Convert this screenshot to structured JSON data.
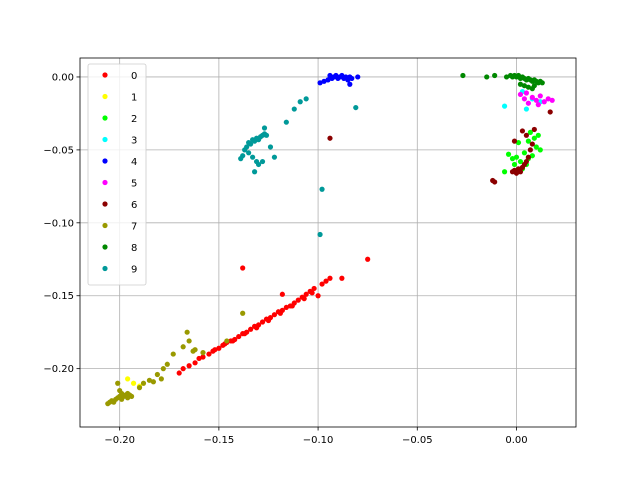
{
  "chart_data": {
    "type": "scatter",
    "title": "",
    "xlabel": "",
    "ylabel": "",
    "xlim": [
      -0.22,
      0.03
    ],
    "ylim": [
      -0.24,
      0.013
    ],
    "grid": true,
    "legend_placement": "upper-left",
    "x_ticks": [
      -0.2,
      -0.15,
      -0.1,
      -0.05,
      0.0
    ],
    "x_tick_labels": [
      "−0.20",
      "−0.15",
      "−0.10",
      "−0.05",
      "0.00"
    ],
    "y_ticks": [
      0.0,
      -0.05,
      -0.1,
      -0.15,
      -0.2
    ],
    "y_tick_labels": [
      "0.00",
      "−0.05",
      "−0.10",
      "−0.15",
      "−0.20"
    ],
    "series": [
      {
        "name": "0",
        "color": "#ff0000",
        "points": [
          [
            -0.17,
            -0.203
          ],
          [
            -0.168,
            -0.2
          ],
          [
            -0.165,
            -0.198
          ],
          [
            -0.162,
            -0.196
          ],
          [
            -0.16,
            -0.193
          ],
          [
            -0.158,
            -0.192
          ],
          [
            -0.155,
            -0.19
          ],
          [
            -0.153,
            -0.188
          ],
          [
            -0.15,
            -0.186
          ],
          [
            -0.148,
            -0.184
          ],
          [
            -0.146,
            -0.182
          ],
          [
            -0.144,
            -0.181
          ],
          [
            -0.142,
            -0.18
          ],
          [
            -0.14,
            -0.178
          ],
          [
            -0.138,
            -0.176
          ],
          [
            -0.136,
            -0.175
          ],
          [
            -0.134,
            -0.173
          ],
          [
            -0.132,
            -0.171
          ],
          [
            -0.13,
            -0.17
          ],
          [
            -0.128,
            -0.168
          ],
          [
            -0.126,
            -0.166
          ],
          [
            -0.124,
            -0.165
          ],
          [
            -0.122,
            -0.163
          ],
          [
            -0.12,
            -0.161
          ],
          [
            -0.118,
            -0.16
          ],
          [
            -0.116,
            -0.158
          ],
          [
            -0.114,
            -0.157
          ],
          [
            -0.112,
            -0.155
          ],
          [
            -0.11,
            -0.153
          ],
          [
            -0.108,
            -0.151
          ],
          [
            -0.106,
            -0.149
          ],
          [
            -0.104,
            -0.147
          ],
          [
            -0.102,
            -0.145
          ],
          [
            -0.1,
            -0.15
          ],
          [
            -0.098,
            -0.142
          ],
          [
            -0.096,
            -0.14
          ],
          [
            -0.094,
            -0.138
          ],
          [
            -0.118,
            -0.149
          ],
          [
            -0.152,
            -0.187
          ],
          [
            -0.147,
            -0.183
          ],
          [
            -0.143,
            -0.181
          ],
          [
            -0.137,
            -0.176
          ],
          [
            -0.131,
            -0.172
          ],
          [
            -0.125,
            -0.167
          ],
          [
            -0.119,
            -0.162
          ],
          [
            -0.113,
            -0.157
          ],
          [
            -0.107,
            -0.152
          ],
          [
            -0.103,
            -0.148
          ],
          [
            -0.088,
            -0.138
          ],
          [
            -0.075,
            -0.125
          ],
          [
            -0.138,
            -0.131
          ]
        ]
      },
      {
        "name": "1",
        "color": "#ffff00",
        "points": [
          [
            -0.196,
            -0.207
          ],
          [
            -0.193,
            -0.21
          ],
          [
            -0.19,
            -0.212
          ]
        ]
      },
      {
        "name": "2",
        "color": "#00ff00",
        "points": [
          [
            -0.004,
            -0.053
          ],
          [
            -0.002,
            -0.056
          ],
          [
            0.0,
            -0.055
          ],
          [
            0.002,
            -0.058
          ],
          [
            0.004,
            -0.052
          ],
          [
            0.006,
            -0.056
          ],
          [
            0.008,
            -0.054
          ],
          [
            0.01,
            -0.048
          ],
          [
            0.012,
            -0.05
          ],
          [
            0.005,
            -0.06
          ],
          [
            0.003,
            -0.063
          ],
          [
            -0.006,
            -0.065
          ],
          [
            0.009,
            -0.042
          ],
          [
            0.011,
            -0.04
          ],
          [
            0.007,
            -0.038
          ],
          [
            0.001,
            -0.045
          ],
          [
            -0.001,
            -0.06
          ],
          [
            0.006,
            -0.044
          ]
        ]
      },
      {
        "name": "3",
        "color": "#00ffff",
        "points": [
          [
            -0.006,
            -0.02
          ],
          [
            0.003,
            -0.01
          ],
          [
            0.008,
            -0.015
          ],
          [
            0.005,
            -0.022
          ],
          [
            0.012,
            -0.017
          ]
        ]
      },
      {
        "name": "4",
        "color": "#0000ff",
        "points": [
          [
            -0.094,
            0.001
          ],
          [
            -0.093,
            -0.001
          ],
          [
            -0.092,
            0.0
          ],
          [
            -0.091,
            0.001
          ],
          [
            -0.09,
            -0.001
          ],
          [
            -0.089,
            0.0
          ],
          [
            -0.088,
            0.001
          ],
          [
            -0.087,
            -0.001
          ],
          [
            -0.086,
            0.0
          ],
          [
            -0.085,
            -0.002
          ],
          [
            -0.084,
            0.0
          ],
          [
            -0.083,
            -0.001
          ],
          [
            -0.08,
            0.0
          ],
          [
            -0.095,
            -0.002
          ],
          [
            -0.097,
            -0.003
          ],
          [
            -0.099,
            -0.004
          ],
          [
            -0.084,
            -0.005
          ]
        ]
      },
      {
        "name": "5",
        "color": "#ff00ff",
        "points": [
          [
            0.002,
            -0.012
          ],
          [
            0.004,
            -0.015
          ],
          [
            0.006,
            -0.018
          ],
          [
            0.008,
            -0.014
          ],
          [
            0.01,
            -0.016
          ],
          [
            0.012,
            -0.013
          ],
          [
            0.014,
            -0.017
          ],
          [
            0.016,
            -0.015
          ],
          [
            0.018,
            -0.016
          ],
          [
            0.011,
            -0.019
          ],
          [
            0.005,
            -0.011
          ]
        ]
      },
      {
        "name": "6",
        "color": "#8b0000",
        "points": [
          [
            -0.002,
            -0.065
          ],
          [
            -0.001,
            -0.064
          ],
          [
            0.0,
            -0.066
          ],
          [
            0.001,
            -0.063
          ],
          [
            0.002,
            -0.065
          ],
          [
            0.003,
            -0.062
          ],
          [
            0.004,
            -0.06
          ],
          [
            0.005,
            -0.058
          ],
          [
            0.006,
            -0.055
          ],
          [
            0.007,
            -0.05
          ],
          [
            0.008,
            -0.046
          ],
          [
            0.005,
            -0.04
          ],
          [
            0.003,
            -0.037
          ],
          [
            0.009,
            -0.036
          ],
          [
            -0.012,
            -0.071
          ],
          [
            -0.011,
            -0.072
          ],
          [
            0.017,
            -0.024
          ],
          [
            -0.001,
            -0.044
          ],
          [
            -0.094,
            -0.042
          ]
        ]
      },
      {
        "name": "7",
        "color": "#999900",
        "points": [
          [
            -0.206,
            -0.224
          ],
          [
            -0.205,
            -0.223
          ],
          [
            -0.204,
            -0.222
          ],
          [
            -0.203,
            -0.223
          ],
          [
            -0.202,
            -0.221
          ],
          [
            -0.201,
            -0.22
          ],
          [
            -0.2,
            -0.219
          ],
          [
            -0.199,
            -0.221
          ],
          [
            -0.198,
            -0.219
          ],
          [
            -0.197,
            -0.218
          ],
          [
            -0.196,
            -0.217
          ],
          [
            -0.195,
            -0.218
          ],
          [
            -0.194,
            -0.219
          ],
          [
            -0.2,
            -0.215
          ],
          [
            -0.201,
            -0.21
          ],
          [
            -0.196,
            -0.22
          ],
          [
            -0.199,
            -0.217
          ],
          [
            -0.19,
            -0.213
          ],
          [
            -0.188,
            -0.21
          ],
          [
            -0.185,
            -0.208
          ],
          [
            -0.181,
            -0.204
          ],
          [
            -0.178,
            -0.2
          ],
          [
            -0.179,
            -0.207
          ],
          [
            -0.176,
            -0.197
          ],
          [
            -0.173,
            -0.19
          ],
          [
            -0.168,
            -0.185
          ],
          [
            -0.165,
            -0.181
          ],
          [
            -0.166,
            -0.175
          ],
          [
            -0.163,
            -0.188
          ],
          [
            -0.138,
            -0.162
          ],
          [
            -0.146,
            -0.181
          ],
          [
            -0.158,
            -0.189
          ],
          [
            -0.162,
            -0.187
          ],
          [
            -0.183,
            -0.209
          ]
        ]
      },
      {
        "name": "8",
        "color": "#008800",
        "points": [
          [
            -0.027,
            0.001
          ],
          [
            -0.015,
            0.0
          ],
          [
            -0.011,
            0.001
          ],
          [
            -0.005,
            0.0
          ],
          [
            -0.003,
            0.001
          ],
          [
            -0.002,
            0.0
          ],
          [
            -0.001,
            0.001
          ],
          [
            0.0,
            0.0
          ],
          [
            0.001,
            0.001
          ],
          [
            0.002,
            -0.001
          ],
          [
            0.003,
            0.0
          ],
          [
            0.004,
            -0.001
          ],
          [
            0.005,
            -0.002
          ],
          [
            0.006,
            -0.001
          ],
          [
            0.007,
            -0.002
          ],
          [
            0.008,
            -0.003
          ],
          [
            0.009,
            -0.002
          ],
          [
            0.01,
            -0.003
          ],
          [
            0.011,
            -0.004
          ],
          [
            0.012,
            -0.003
          ],
          [
            0.013,
            -0.004
          ],
          [
            0.002,
            -0.005
          ],
          [
            0.004,
            -0.006
          ],
          [
            0.006,
            -0.007
          ],
          [
            0.008,
            -0.008
          ],
          [
            0.009,
            -0.006
          ]
        ]
      },
      {
        "name": "9",
        "color": "#009999",
        "points": [
          [
            -0.137,
            -0.05
          ],
          [
            -0.136,
            -0.048
          ],
          [
            -0.135,
            -0.045
          ],
          [
            -0.134,
            -0.046
          ],
          [
            -0.133,
            -0.043
          ],
          [
            -0.132,
            -0.044
          ],
          [
            -0.131,
            -0.042
          ],
          [
            -0.13,
            -0.043
          ],
          [
            -0.129,
            -0.041
          ],
          [
            -0.128,
            -0.04
          ],
          [
            -0.127,
            -0.039
          ],
          [
            -0.138,
            -0.054
          ],
          [
            -0.139,
            -0.056
          ],
          [
            -0.135,
            -0.052
          ],
          [
            -0.133,
            -0.055
          ],
          [
            -0.131,
            -0.058
          ],
          [
            -0.132,
            -0.065
          ],
          [
            -0.13,
            -0.06
          ],
          [
            -0.128,
            -0.058
          ],
          [
            -0.127,
            -0.035
          ],
          [
            -0.126,
            -0.04
          ],
          [
            -0.124,
            -0.048
          ],
          [
            -0.122,
            -0.055
          ],
          [
            -0.116,
            -0.031
          ],
          [
            -0.112,
            -0.022
          ],
          [
            -0.109,
            -0.017
          ],
          [
            -0.106,
            -0.015
          ],
          [
            -0.098,
            -0.077
          ],
          [
            -0.099,
            -0.108
          ],
          [
            -0.081,
            -0.021
          ]
        ]
      }
    ]
  }
}
